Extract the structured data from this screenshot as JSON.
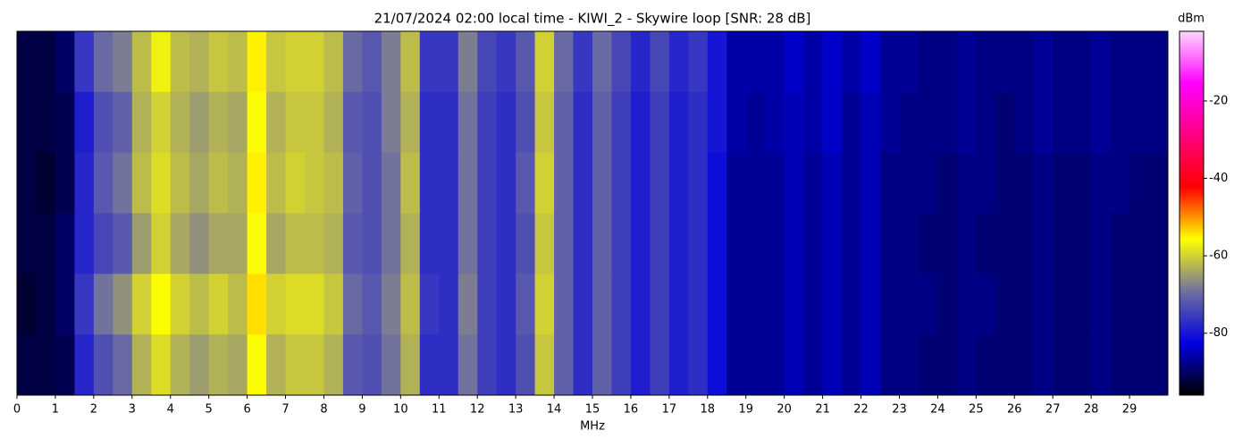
{
  "chart_data": {
    "type": "heatmap",
    "title": "21/07/2024 02:00 local time - KIWI_2 - Skywire loop [SNR: 28 dB]",
    "x_label": "MHz",
    "xlim": [
      0,
      30
    ],
    "xticks": [
      0,
      1,
      2,
      3,
      4,
      5,
      6,
      7,
      8,
      9,
      10,
      11,
      12,
      13,
      14,
      15,
      16,
      17,
      18,
      19,
      20,
      21,
      22,
      23,
      24,
      25,
      26,
      27,
      28,
      29
    ],
    "colorbar_label": "dBm",
    "clim": [
      -96,
      -2
    ],
    "cticks": [
      -80,
      -60,
      -40,
      -20
    ],
    "colormap": [
      "#000000",
      "#0000e0",
      "#7070a0",
      "#ffff00",
      "#ff0000",
      "#ff0080",
      "#ff00ff",
      "#ffd8ff"
    ],
    "z": [
      [
        -92,
        -92,
        -90,
        -76,
        -70,
        -68,
        -62,
        -57,
        -62,
        -63,
        -61,
        -62,
        -55,
        -61,
        -60,
        -60,
        -62,
        -70,
        -72,
        -68,
        -62,
        -76,
        -76,
        -68,
        -74,
        -76,
        -72,
        -60,
        -70,
        -76,
        -70,
        -74,
        -78,
        -74,
        -78,
        -76,
        -80,
        -86,
        -86,
        -86,
        -84,
        -86,
        -84,
        -86,
        -84,
        -87,
        -87,
        -88,
        -88,
        -87,
        -88,
        -88,
        -88,
        -87,
        -88,
        -88,
        -87,
        -88,
        -88,
        -88
      ],
      [
        -92,
        -92,
        -91,
        -79,
        -73,
        -71,
        -63,
        -60,
        -63,
        -65,
        -63,
        -64,
        -56,
        -63,
        -61,
        -61,
        -63,
        -72,
        -73,
        -68,
        -63,
        -77,
        -77,
        -69,
        -75,
        -77,
        -73,
        -61,
        -71,
        -77,
        -71,
        -75,
        -79,
        -75,
        -79,
        -77,
        -80,
        -86,
        -87,
        -86,
        -85,
        -86,
        -84,
        -87,
        -85,
        -87,
        -88,
        -88,
        -88,
        -87,
        -88,
        -89,
        -88,
        -87,
        -88,
        -88,
        -87,
        -88,
        -88,
        -88
      ],
      [
        -92,
        -93,
        -91,
        -78,
        -72,
        -69,
        -62,
        -59,
        -62,
        -64,
        -62,
        -63,
        -55,
        -62,
        -60,
        -61,
        -62,
        -71,
        -73,
        -69,
        -62,
        -77,
        -77,
        -69,
        -75,
        -77,
        -72,
        -60,
        -71,
        -77,
        -71,
        -75,
        -79,
        -75,
        -79,
        -77,
        -81,
        -87,
        -87,
        -87,
        -85,
        -87,
        -85,
        -87,
        -85,
        -88,
        -88,
        -88,
        -89,
        -88,
        -88,
        -89,
        -89,
        -88,
        -89,
        -89,
        -88,
        -88,
        -89,
        -89
      ],
      [
        -92,
        -92,
        -90,
        -78,
        -74,
        -72,
        -65,
        -60,
        -64,
        -66,
        -64,
        -64,
        -56,
        -64,
        -62,
        -62,
        -63,
        -72,
        -73,
        -69,
        -63,
        -77,
        -77,
        -69,
        -75,
        -77,
        -73,
        -61,
        -71,
        -77,
        -71,
        -75,
        -79,
        -75,
        -79,
        -77,
        -81,
        -87,
        -87,
        -87,
        -85,
        -87,
        -85,
        -87,
        -85,
        -88,
        -88,
        -89,
        -89,
        -88,
        -89,
        -89,
        -89,
        -88,
        -89,
        -89,
        -88,
        -89,
        -89,
        -89
      ],
      [
        -93,
        -92,
        -90,
        -76,
        -69,
        -66,
        -60,
        -56,
        -60,
        -62,
        -60,
        -62,
        -54,
        -60,
        -59,
        -59,
        -61,
        -70,
        -72,
        -68,
        -62,
        -76,
        -77,
        -68,
        -75,
        -77,
        -72,
        -60,
        -71,
        -77,
        -71,
        -75,
        -79,
        -75,
        -79,
        -77,
        -81,
        -87,
        -87,
        -87,
        -85,
        -87,
        -85,
        -87,
        -85,
        -88,
        -88,
        -88,
        -89,
        -88,
        -88,
        -89,
        -89,
        -88,
        -89,
        -89,
        -88,
        -89,
        -89,
        -89
      ],
      [
        -92,
        -92,
        -91,
        -78,
        -73,
        -70,
        -63,
        -59,
        -63,
        -65,
        -63,
        -64,
        -56,
        -63,
        -61,
        -61,
        -63,
        -72,
        -73,
        -69,
        -63,
        -77,
        -77,
        -69,
        -75,
        -77,
        -73,
        -61,
        -71,
        -77,
        -71,
        -75,
        -79,
        -75,
        -79,
        -77,
        -81,
        -87,
        -87,
        -87,
        -85,
        -87,
        -85,
        -87,
        -85,
        -88,
        -88,
        -89,
        -89,
        -88,
        -89,
        -89,
        -89,
        -88,
        -89,
        -89,
        -88,
        -89,
        -89,
        -89
      ]
    ]
  }
}
